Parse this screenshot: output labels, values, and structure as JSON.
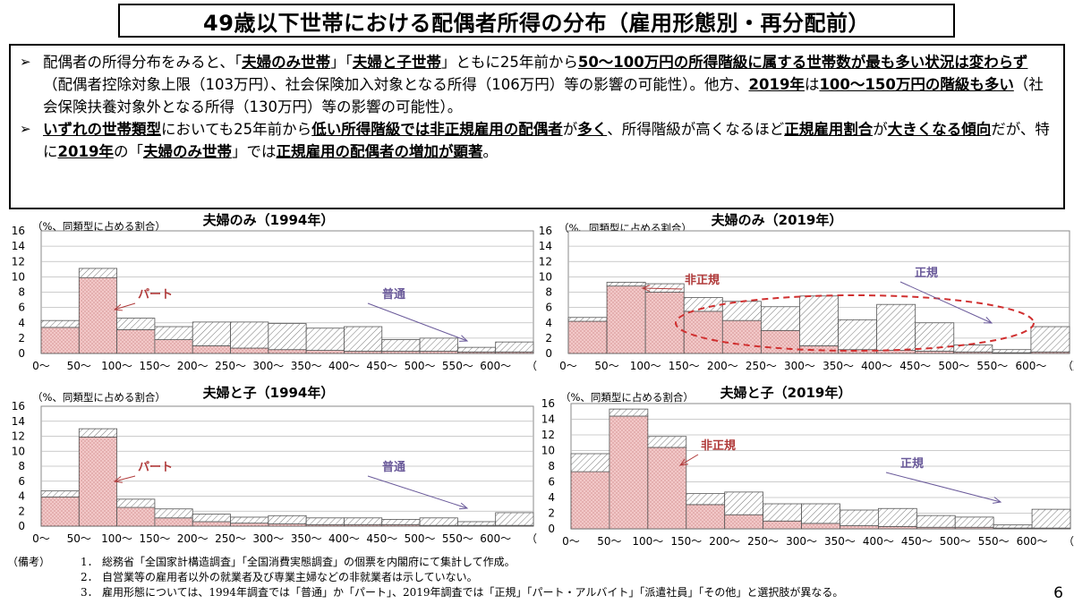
{
  "title": "49歳以下世帯における配偶者所得の分布（雇用形態別・再分配前）",
  "summary": {
    "bullet_mark": "➢",
    "bullets": [
      [
        {
          "t": "配偶者の所得分布をみると、「"
        },
        {
          "t": "夫婦のみ世帯",
          "em": true
        },
        {
          "t": "」「"
        },
        {
          "t": "夫婦と子世帯",
          "em": true
        },
        {
          "t": "」ともに25年前から"
        },
        {
          "t": "50～100万円の所得階級に属する世帯数が最も多い状況は変わらず",
          "em": true
        },
        {
          "t": "（配偶者控除対象上限（103万円）、社会保険加入対象となる所得（106万円）等の影響の可能性）。他方、"
        },
        {
          "t": "2019年",
          "em": true
        },
        {
          "t": "は"
        },
        {
          "t": "100～150万円の階級も多い",
          "em": true
        },
        {
          "t": "（社会保険扶養対象外となる所得（130万円）等の影響の可能性）。"
        }
      ],
      [
        {
          "t": "いずれの世帯類型",
          "em": true
        },
        {
          "t": "においても25年前から"
        },
        {
          "t": "低い所得階級では非正規雇用の配偶者",
          "em": true
        },
        {
          "t": "が"
        },
        {
          "t": "多く",
          "em": true
        },
        {
          "t": "、所得階級が高くなるほど"
        },
        {
          "t": "正規雇用割合",
          "em": true
        },
        {
          "t": "が"
        },
        {
          "t": "大きくなる傾向",
          "em": true
        },
        {
          "t": "だが、特に"
        },
        {
          "t": "2019年",
          "em": true
        },
        {
          "t": "の「"
        },
        {
          "t": "夫婦のみ世帯",
          "em": true
        },
        {
          "t": "」では"
        },
        {
          "t": "正規雇用の配偶者の増加が顕著",
          "em": true
        },
        {
          "t": "。"
        }
      ]
    ]
  },
  "colors": {
    "nonregular_fill": "#f2c8c8",
    "nonregular_dot": "#c07070",
    "regular_hatch": "#777777",
    "label_red": "#b03a3a",
    "label_purple": "#6a5a9a",
    "ellipse": "#d03030"
  },
  "chart_data": [
    {
      "type": "bar",
      "title": "夫婦のみ（1994年）",
      "ylabel": "（%、同類型に占める割合）",
      "xunit": "（万円）",
      "ylim": [
        0,
        16
      ],
      "yticks": [
        "0",
        "2",
        "4",
        "6",
        "8",
        "10",
        "12",
        "14",
        "16"
      ],
      "categories": [
        "0～",
        "50～",
        "100～",
        "150～",
        "200～",
        "250～",
        "300～",
        "350～",
        "400～",
        "450～",
        "500～",
        "550～",
        "600～"
      ],
      "series": [
        {
          "name": "パート",
          "values": [
            3.4,
            9.9,
            3.1,
            1.8,
            1.0,
            0.7,
            0.5,
            0.4,
            0.3,
            0.3,
            0.3,
            0.2,
            0.2
          ]
        },
        {
          "name": "普通",
          "values": [
            0.9,
            1.2,
            1.5,
            1.7,
            3.1,
            3.4,
            3.4,
            2.9,
            3.2,
            1.5,
            1.7,
            0.6,
            1.3
          ]
        }
      ],
      "annotations": {
        "series0_label": "パート",
        "series1_label": "普通"
      }
    },
    {
      "type": "bar",
      "title": "夫婦のみ（2019年）",
      "ylabel": "（%、同類型に占める割合）",
      "xunit": "（万円）",
      "ylim": [
        0,
        16
      ],
      "yticks": [
        "0",
        "2",
        "4",
        "6",
        "8",
        "10",
        "12",
        "14",
        "16"
      ],
      "categories": [
        "0～",
        "50～",
        "100～",
        "150～",
        "200～",
        "250～",
        "300～",
        "350～",
        "400～",
        "450～",
        "500～",
        "550～",
        "600～"
      ],
      "series": [
        {
          "name": "非正規",
          "values": [
            4.2,
            8.8,
            8.0,
            5.5,
            4.3,
            3.0,
            1.0,
            0.5,
            0.4,
            0.3,
            0.2,
            0.1,
            0.2
          ]
        },
        {
          "name": "正規",
          "values": [
            0.5,
            0.5,
            1.1,
            1.8,
            2.5,
            3.1,
            6.5,
            3.9,
            6.0,
            3.7,
            0.9,
            0.4,
            3.3
          ]
        }
      ],
      "annotations": {
        "series0_label": "非正規",
        "series1_label": "正規"
      }
    },
    {
      "type": "bar",
      "title": "夫婦と子（1994年）",
      "ylabel": "（%、同類型に占める割合）",
      "xunit": "（万円）",
      "ylim": [
        0,
        16
      ],
      "yticks": [
        "0",
        "2",
        "4",
        "6",
        "8",
        "10",
        "12",
        "14",
        "16"
      ],
      "categories": [
        "0～",
        "50～",
        "100～",
        "150～",
        "200～",
        "250～",
        "300～",
        "350～",
        "400～",
        "450～",
        "500～",
        "550～",
        "600～"
      ],
      "series": [
        {
          "name": "パート",
          "values": [
            3.9,
            11.9,
            2.5,
            1.1,
            0.6,
            0.4,
            0.3,
            0.2,
            0.2,
            0.2,
            0.1,
            0.1,
            0.1
          ]
        },
        {
          "name": "普通",
          "values": [
            0.8,
            1.1,
            1.1,
            1.2,
            1.0,
            0.8,
            1.1,
            0.9,
            0.9,
            0.7,
            1.0,
            0.5,
            1.7
          ]
        }
      ],
      "annotations": {
        "series0_label": "パート",
        "series1_label": "普通"
      }
    },
    {
      "type": "bar",
      "title": "夫婦と子（2019年）",
      "ylabel": "（%、同類型に占める割合）",
      "xunit": "（万円）",
      "ylim": [
        0,
        16
      ],
      "yticks": [
        "0",
        "2",
        "4",
        "6",
        "8",
        "10",
        "12",
        "14",
        "16"
      ],
      "categories": [
        "0～",
        "50～",
        "100～",
        "150～",
        "200～",
        "250～",
        "300～",
        "350～",
        "400～",
        "450～",
        "500～",
        "550～",
        "600～"
      ],
      "series": [
        {
          "name": "非正規",
          "values": [
            7.3,
            14.4,
            10.4,
            3.1,
            1.8,
            1.0,
            0.7,
            0.4,
            0.3,
            0.2,
            0.2,
            0.1,
            0.1
          ]
        },
        {
          "name": "正規",
          "values": [
            2.3,
            0.9,
            1.4,
            1.4,
            2.9,
            2.2,
            2.5,
            2.0,
            2.3,
            1.5,
            1.3,
            0.4,
            2.4
          ]
        }
      ],
      "annotations": {
        "series0_label": "非正規",
        "series1_label": "正規"
      }
    }
  ],
  "notes": {
    "lead": "（備考）",
    "items": [
      {
        "num": "1．",
        "text": "総務省「全国家計構造調査」「全国消費実態調査」の個票を内閣府にて集計して作成。"
      },
      {
        "num": "2．",
        "text": "自営業等の雇用者以外の就業者及び専業主婦などの非就業者は示していない。"
      },
      {
        "num": "3．",
        "text": "雇用形態については、1994年調査では「普通」か「パート」、2019年調査では「正規」「パート・アルバイト」「派遣社員」「その他」と選択肢が異なる。"
      }
    ]
  },
  "page_number": "6"
}
